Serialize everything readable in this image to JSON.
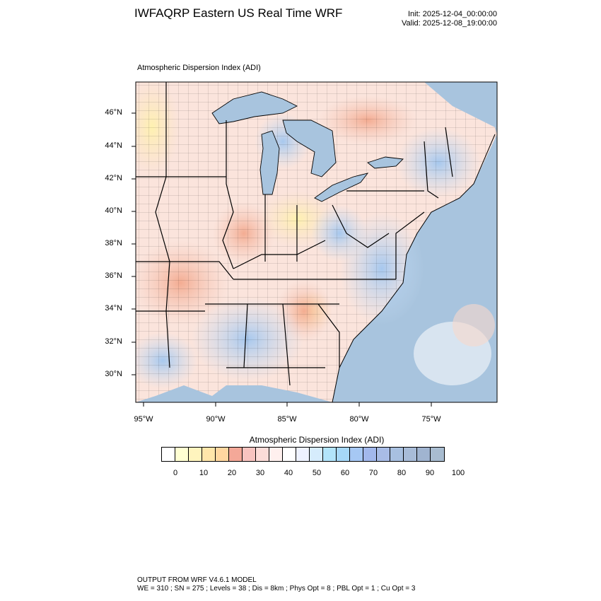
{
  "header": {
    "title": "IWFAQRP Eastern US Real Time WRF",
    "init": "Init: 2025-12-04_00:00:00",
    "valid": "Valid: 2025-12-08_19:00:00"
  },
  "map": {
    "field_label": "Atmospheric Dispersion Index   (ADI)",
    "lat_labels": [
      "46°N",
      "44°N",
      "42°N",
      "40°N",
      "38°N",
      "36°N",
      "34°N",
      "32°N",
      "30°N"
    ],
    "lon_labels": [
      "95°W",
      "90°W",
      "85°W",
      "80°W",
      "75°W"
    ],
    "colors": {
      "water": "#a8c4de",
      "land_low": "#fff7c0",
      "land_mid": "#f7b8a0",
      "land_high": "#a9c6e8",
      "borders": "#000000"
    }
  },
  "colorbar": {
    "title": "Atmospheric Dispersion Index  (ADI)",
    "tick_labels": [
      "0",
      "10",
      "20",
      "30",
      "40",
      "50",
      "60",
      "70",
      "80",
      "90",
      "100"
    ],
    "colors": [
      "#ffffff",
      "#ffffd2",
      "#fff4be",
      "#ffe6aa",
      "#ffd7a0",
      "#f4a898",
      "#f8c4c0",
      "#fcdcd8",
      "#fff0ee",
      "#ffffff",
      "#eef2ff",
      "#d6ecfc",
      "#b2e4fa",
      "#a6d8f8",
      "#a6c8f4",
      "#a2b8ec",
      "#a8bce6",
      "#a8c0e0",
      "#a8bcd8",
      "#a0b4d0",
      "#a8bcd0"
    ]
  },
  "footer": {
    "line1": "OUTPUT FROM WRF V4.6.1 MODEL",
    "line2": "WE = 310 ; SN = 275 ; Levels = 38 ; Dis = 8km ; Phys Opt = 8 ; PBL Opt = 1 ; Cu Opt = 3"
  }
}
